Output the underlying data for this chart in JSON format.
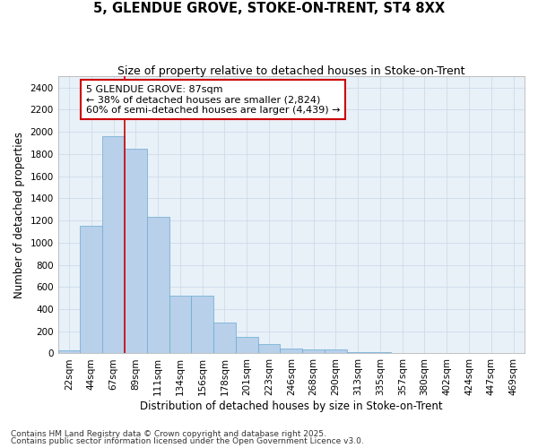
{
  "title_line1": "5, GLENDUE GROVE, STOKE-ON-TRENT, ST4 8XX",
  "title_line2": "Size of property relative to detached houses in Stoke-on-Trent",
  "xlabel": "Distribution of detached houses by size in Stoke-on-Trent",
  "ylabel": "Number of detached properties",
  "categories": [
    "22sqm",
    "44sqm",
    "67sqm",
    "89sqm",
    "111sqm",
    "134sqm",
    "156sqm",
    "178sqm",
    "201sqm",
    "223sqm",
    "246sqm",
    "268sqm",
    "290sqm",
    "313sqm",
    "335sqm",
    "357sqm",
    "380sqm",
    "402sqm",
    "424sqm",
    "447sqm",
    "469sqm"
  ],
  "values": [
    25,
    1155,
    1960,
    1845,
    1230,
    525,
    525,
    275,
    150,
    85,
    45,
    40,
    35,
    15,
    8,
    4,
    2,
    1,
    1,
    1,
    1
  ],
  "bar_color": "#b8d0ea",
  "bar_edge_color": "#6aabd2",
  "vline_color": "#cc0000",
  "annotation_text_line1": "5 GLENDUE GROVE: 87sqm",
  "annotation_text_line2": "← 38% of detached houses are smaller (2,824)",
  "annotation_text_line3": "60% of semi-detached houses are larger (4,439) →",
  "annotation_box_color": "#cc0000",
  "annotation_bg": "white",
  "ylim": [
    0,
    2500
  ],
  "yticks": [
    0,
    200,
    400,
    600,
    800,
    1000,
    1200,
    1400,
    1600,
    1800,
    2000,
    2200,
    2400
  ],
  "grid_color": "#c8d8e8",
  "background_color": "#e8f0f8",
  "footer_line1": "Contains HM Land Registry data © Crown copyright and database right 2025.",
  "footer_line2": "Contains public sector information licensed under the Open Government Licence v3.0.",
  "title_fontsize": 10.5,
  "subtitle_fontsize": 9,
  "axis_label_fontsize": 8.5,
  "tick_fontsize": 7.5,
  "annotation_fontsize": 8,
  "footer_fontsize": 6.5,
  "vline_index": 2.5
}
